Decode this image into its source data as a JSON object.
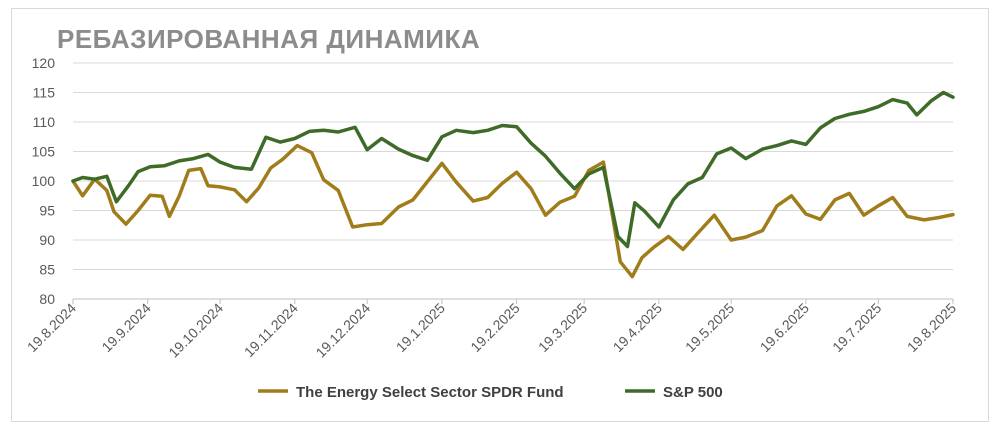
{
  "chart_data": {
    "type": "line",
    "title": "РЕБАЗИРОВАННАЯ ДИНАМИКА",
    "xlabel": "",
    "ylabel": "",
    "ylim": [
      80,
      120
    ],
    "yticks": [
      "80",
      "85",
      "90",
      "95",
      "100",
      "105",
      "110",
      "115",
      "120"
    ],
    "xticks": [
      "19.8.2024",
      "19.9.2024",
      "19.10.2024",
      "19.11.2024",
      "19.12.2024",
      "19.1.2025",
      "19.2.2025",
      "19.3.2025",
      "19.4.2025",
      "19.5.2025",
      "19.6.2025",
      "19.7.2025",
      "19.8.2025"
    ],
    "grid": "horizontal",
    "legend": "bottom",
    "series": [
      {
        "name": "The Energy Select Sector SPDR Fund",
        "color": "#a07c1a",
        "points": [
          [
            "19.8.2024",
            100
          ],
          [
            "23.8.2024",
            97.5
          ],
          [
            "28.8.2024",
            100.3
          ],
          [
            "2.9.2024",
            98.4
          ],
          [
            "5.9.2024",
            94.8
          ],
          [
            "10.9.2024",
            92.7
          ],
          [
            "15.9.2024",
            95.0
          ],
          [
            "20.9.2024",
            97.6
          ],
          [
            "25.9.2024",
            97.4
          ],
          [
            "28.9.2024",
            94.0
          ],
          [
            "2.10.2024",
            97.4
          ],
          [
            "6.10.2024",
            101.8
          ],
          [
            "11.10.2024",
            102.1
          ],
          [
            "14.10.2024",
            99.2
          ],
          [
            "19.10.2024",
            99.0
          ],
          [
            "25.10.2024",
            98.5
          ],
          [
            "30.10.2024",
            96.5
          ],
          [
            "4.11.2024",
            98.8
          ],
          [
            "9.11.2024",
            102.2
          ],
          [
            "14.11.2024",
            103.7
          ],
          [
            "20.11.2024",
            106.0
          ],
          [
            "26.11.2024",
            104.8
          ],
          [
            "1.12.2024",
            100.2
          ],
          [
            "7.12.2024",
            98.4
          ],
          [
            "13.12.2024",
            92.2
          ],
          [
            "19.12.2024",
            92.6
          ],
          [
            "25.12.2024",
            92.8
          ],
          [
            "1.1.2025",
            95.6
          ],
          [
            "7.1.2025",
            96.8
          ],
          [
            "14.1.2025",
            100.4
          ],
          [
            "19.1.2025",
            103.0
          ],
          [
            "25.1.2025",
            99.8
          ],
          [
            "1.2.2025",
            96.6
          ],
          [
            "7.2.2025",
            97.2
          ],
          [
            "13.2.2025",
            99.6
          ],
          [
            "19.2.2025",
            101.5
          ],
          [
            "25.2.2025",
            98.7
          ],
          [
            "3.3.2025",
            94.2
          ],
          [
            "9.3.2025",
            96.4
          ],
          [
            "15.3.2025",
            97.4
          ],
          [
            "21.3.2025",
            101.8
          ],
          [
            "27.3.2025",
            103.2
          ],
          [
            "3.4.2025",
            86.3
          ],
          [
            "8.4.2025",
            83.8
          ],
          [
            "12.4.2025",
            87.0
          ],
          [
            "17.4.2025",
            88.8
          ],
          [
            "23.4.2025",
            90.6
          ],
          [
            "29.4.2025",
            88.4
          ],
          [
            "5.5.2025",
            91.1
          ],
          [
            "12.5.2025",
            94.2
          ],
          [
            "19.5.2025",
            90.0
          ],
          [
            "25.5.2025",
            90.5
          ],
          [
            "1.6.2025",
            91.6
          ],
          [
            "7.6.2025",
            95.8
          ],
          [
            "13.6.2025",
            97.5
          ],
          [
            "19.6.2025",
            94.4
          ],
          [
            "25.6.2025",
            93.5
          ],
          [
            "1.7.2025",
            96.8
          ],
          [
            "7.7.2025",
            97.9
          ],
          [
            "13.7.2025",
            94.2
          ],
          [
            "19.7.2025",
            95.8
          ],
          [
            "25.7.2025",
            97.2
          ],
          [
            "31.7.2025",
            94.0
          ],
          [
            "7.8.2025",
            93.4
          ],
          [
            "13.8.2025",
            93.8
          ],
          [
            "19.8.2025",
            94.3
          ]
        ]
      },
      {
        "name": "S&P 500",
        "color": "#3e6b28",
        "points": [
          [
            "19.8.2024",
            100
          ],
          [
            "23.8.2024",
            100.6
          ],
          [
            "28.8.2024",
            100.3
          ],
          [
            "2.9.2024",
            100.8
          ],
          [
            "6.9.2024",
            96.5
          ],
          [
            "11.9.2024",
            99.2
          ],
          [
            "15.9.2024",
            101.6
          ],
          [
            "20.9.2024",
            102.4
          ],
          [
            "26.9.2024",
            102.6
          ],
          [
            "2.10.2024",
            103.4
          ],
          [
            "8.10.2024",
            103.8
          ],
          [
            "14.10.2024",
            104.5
          ],
          [
            "19.10.2024",
            103.2
          ],
          [
            "25.10.2024",
            102.3
          ],
          [
            "1.11.2024",
            102.0
          ],
          [
            "7.11.2024",
            107.4
          ],
          [
            "13.11.2024",
            106.6
          ],
          [
            "19.11.2024",
            107.2
          ],
          [
            "25.11.2024",
            108.4
          ],
          [
            "1.12.2024",
            108.6
          ],
          [
            "7.12.2024",
            108.3
          ],
          [
            "14.12.2024",
            109.1
          ],
          [
            "19.12.2024",
            105.3
          ],
          [
            "25.12.2024",
            107.2
          ],
          [
            "1.1.2025",
            105.4
          ],
          [
            "7.1.2025",
            104.3
          ],
          [
            "13.1.2025",
            103.5
          ],
          [
            "19.1.2025",
            107.5
          ],
          [
            "25.1.2025",
            108.6
          ],
          [
            "1.2.2025",
            108.2
          ],
          [
            "7.2.2025",
            108.6
          ],
          [
            "13.2.2025",
            109.4
          ],
          [
            "19.2.2025",
            109.2
          ],
          [
            "25.2.2025",
            106.4
          ],
          [
            "3.3.2025",
            104.2
          ],
          [
            "9.3.2025",
            101.3
          ],
          [
            "15.3.2025",
            98.7
          ],
          [
            "21.3.2025",
            101.2
          ],
          [
            "27.3.2025",
            102.3
          ],
          [
            "2.4.2025",
            90.6
          ],
          [
            "6.4.2025",
            88.9
          ],
          [
            "9.4.2025",
            96.3
          ],
          [
            "13.4.2025",
            94.9
          ],
          [
            "19.4.2025",
            92.2
          ],
          [
            "25.4.2025",
            96.8
          ],
          [
            "1.5.2025",
            99.5
          ],
          [
            "7.5.2025",
            100.6
          ],
          [
            "13.5.2025",
            104.6
          ],
          [
            "19.5.2025",
            105.6
          ],
          [
            "25.5.2025",
            103.8
          ],
          [
            "1.6.2025",
            105.4
          ],
          [
            "7.6.2025",
            106.0
          ],
          [
            "13.6.2025",
            106.8
          ],
          [
            "19.6.2025",
            106.2
          ],
          [
            "25.6.2025",
            109.0
          ],
          [
            "1.7.2025",
            110.6
          ],
          [
            "7.7.2025",
            111.3
          ],
          [
            "13.7.2025",
            111.8
          ],
          [
            "19.7.2025",
            112.6
          ],
          [
            "25.7.2025",
            113.8
          ],
          [
            "31.7.2025",
            113.2
          ],
          [
            "4.8.2025",
            111.2
          ],
          [
            "10.8.2025",
            113.6
          ],
          [
            "15.8.2025",
            115.0
          ],
          [
            "19.8.2025",
            114.2
          ]
        ]
      }
    ]
  }
}
